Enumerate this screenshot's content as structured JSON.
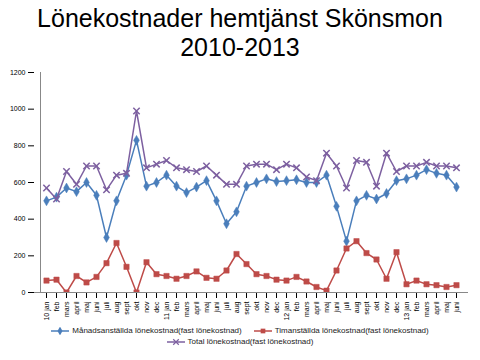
{
  "chart_data": {
    "type": "line",
    "title": "Lönekostnader hemtjänst Skönsmon 2010-2013",
    "categories": [
      "10 jan",
      "feb",
      "mars",
      "april",
      "maj",
      "juni",
      "juli",
      "aug",
      "sept",
      "okt",
      "nov",
      "dec",
      "11 jan",
      "feb",
      "mars",
      "april",
      "maj",
      "juni",
      "juli",
      "aug",
      "sept",
      "okt",
      "nov",
      "dec",
      "12 jan",
      "feb",
      "mars",
      "april",
      "maj",
      "juni",
      "juli",
      "aug",
      "sept",
      "okt",
      "nov",
      "dec",
      "13 jan",
      "feb",
      "mars",
      "april",
      "maj",
      "juni"
    ],
    "series": [
      {
        "name": "Månadsanställda lönekostnad(fast lönekostnad)",
        "color": "#4a7ebb",
        "marker": "diamond",
        "values": [
          500,
          520,
          570,
          550,
          600,
          530,
          300,
          500,
          640,
          830,
          580,
          600,
          640,
          580,
          545,
          575,
          610,
          500,
          375,
          440,
          580,
          600,
          620,
          605,
          610,
          615,
          600,
          600,
          640,
          470,
          280,
          500,
          530,
          510,
          540,
          610,
          620,
          640,
          670,
          650,
          640,
          575
        ]
      },
      {
        "name": "Timanställda lönekostnad(fast lönekostnad)",
        "color": "#be4b48",
        "marker": "square",
        "values": [
          65,
          70,
          0,
          90,
          55,
          85,
          160,
          270,
          140,
          0,
          165,
          100,
          90,
          75,
          90,
          115,
          80,
          75,
          120,
          210,
          155,
          100,
          90,
          70,
          65,
          85,
          60,
          30,
          10,
          120,
          240,
          280,
          215,
          180,
          75,
          220,
          45,
          65,
          45,
          40,
          30,
          40
        ]
      },
      {
        "name": "Total lönekostnad(fast lönekostnad)",
        "color": "#7d60a0",
        "marker": "x",
        "values": [
          570,
          510,
          660,
          590,
          690,
          690,
          560,
          640,
          650,
          990,
          680,
          700,
          720,
          680,
          670,
          660,
          690,
          640,
          590,
          590,
          690,
          700,
          700,
          670,
          700,
          680,
          630,
          610,
          760,
          690,
          570,
          720,
          710,
          580,
          760,
          660,
          690,
          690,
          710,
          690,
          690,
          680
        ]
      }
    ],
    "ylim": [
      0,
      1200
    ],
    "yticks": [
      0,
      200,
      400,
      600,
      800,
      1000,
      1200
    ],
    "grid": false,
    "legend": "bottom"
  }
}
